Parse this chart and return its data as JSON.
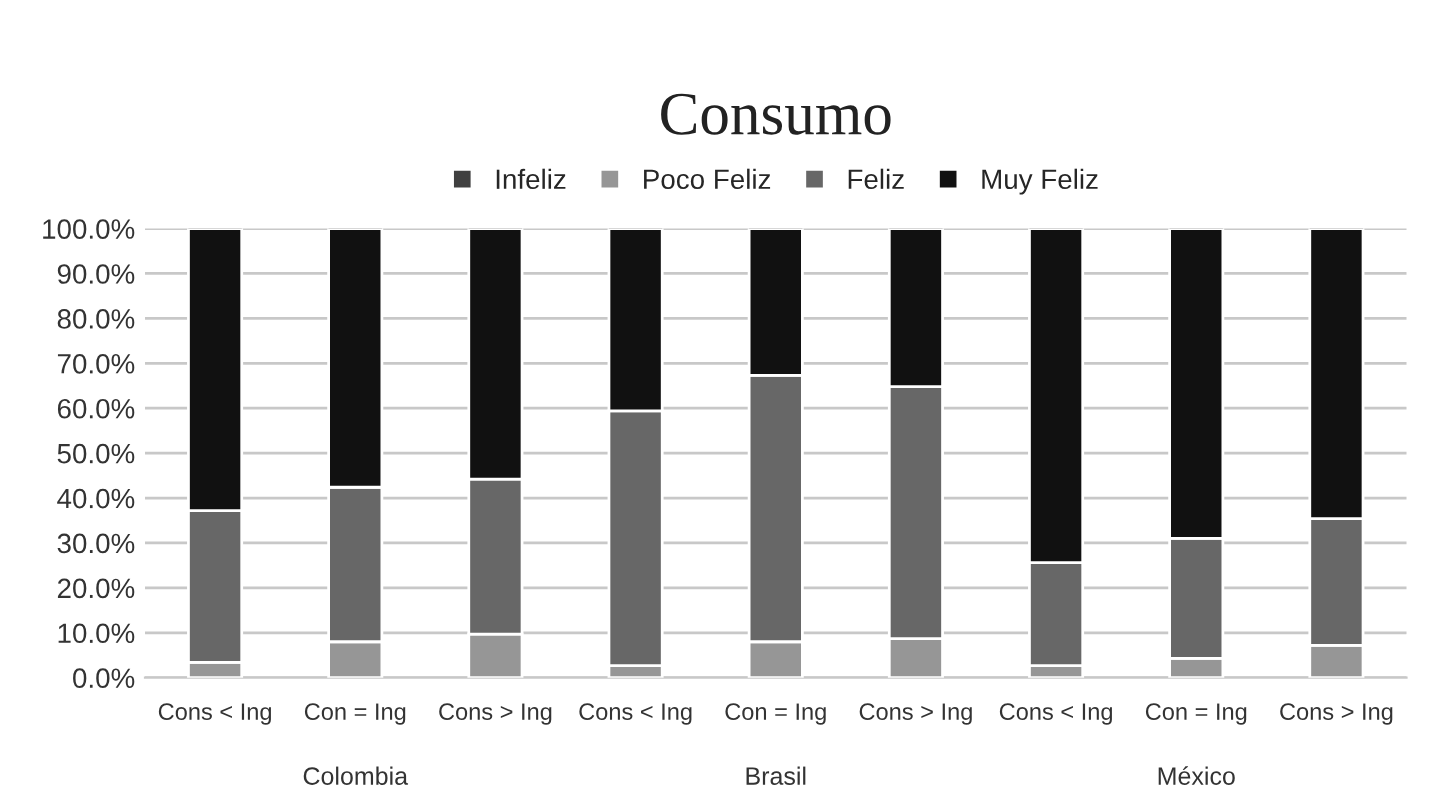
{
  "chart_data": {
    "type": "bar",
    "stacked": true,
    "title": "Consumo",
    "categories": [
      "Cons < Ing",
      "Con = Ing",
      "Cons > Ing",
      "Cons < Ing",
      "Con = Ing",
      "Cons > Ing",
      "Cons < Ing",
      "Con = Ing",
      "Cons > Ing"
    ],
    "series": [
      {
        "name": "Infeliz",
        "color": "#404040",
        "values": [
          0,
          0,
          0,
          0,
          0,
          0,
          0,
          0,
          0
        ]
      },
      {
        "name": "Poco Feliz",
        "color": "#969696",
        "values": [
          3.4,
          8.0,
          9.7,
          2.7,
          8.0,
          8.7,
          2.7,
          4.3,
          7.2
        ]
      },
      {
        "name": "Feliz",
        "color": "#676767",
        "values": [
          33.8,
          34.4,
          34.5,
          56.7,
          59.3,
          56.1,
          22.9,
          26.7,
          28.2
        ]
      },
      {
        "name": "Muy Feliz",
        "color": "#111111",
        "values": [
          62.8,
          57.6,
          55.8,
          40.6,
          32.7,
          35.2,
          74.4,
          69.0,
          64.6
        ]
      }
    ],
    "annotations": [
      "Colombia",
      "Brasil",
      "México"
    ],
    "ylim": [
      0,
      100
    ],
    "yticks": [
      {
        "value": 0,
        "label": "0.0%"
      },
      {
        "value": 10,
        "label": "10.0%"
      },
      {
        "value": 20,
        "label": "20.0%"
      },
      {
        "value": 30,
        "label": "30.0%"
      },
      {
        "value": 40,
        "label": "40.0%"
      },
      {
        "value": 50,
        "label": "50.0%"
      },
      {
        "value": 60,
        "label": "60.0%"
      },
      {
        "value": 70,
        "label": "70.0%"
      },
      {
        "value": 80,
        "label": "80.0%"
      },
      {
        "value": 90,
        "label": "90.0%"
      },
      {
        "value": 100,
        "label": "100.0%"
      }
    ],
    "grid": "y",
    "legend": "top"
  }
}
